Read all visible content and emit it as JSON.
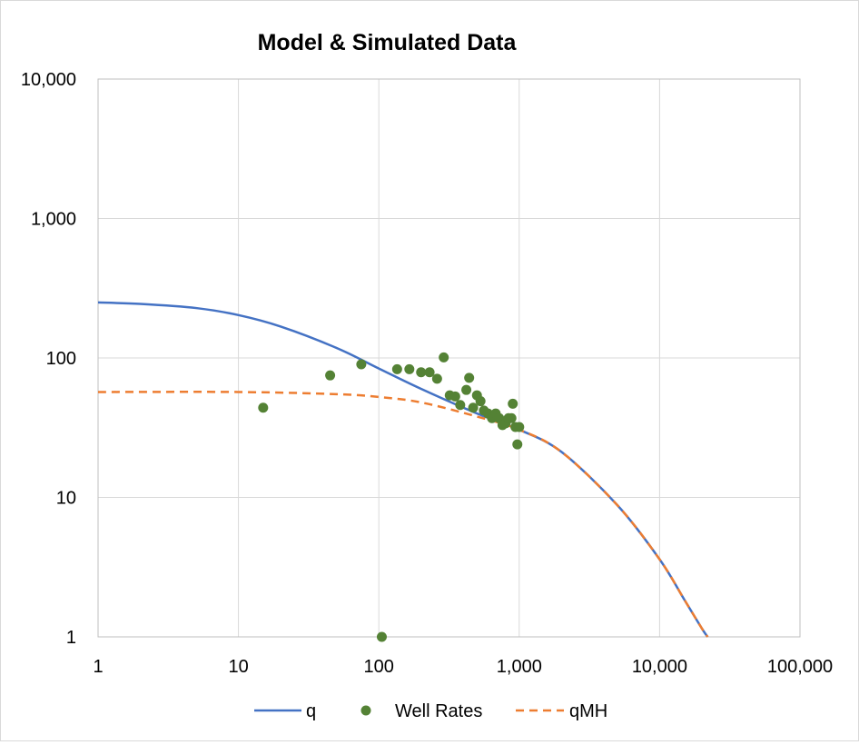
{
  "chart_data": {
    "type": "scatter",
    "title": "Model & Simulated Data",
    "xlabel": "",
    "ylabel": "",
    "x_scale": "log",
    "y_scale": "log",
    "xlim": [
      1,
      100000
    ],
    "ylim": [
      1,
      10000
    ],
    "grid": true,
    "legend_position": "bottom",
    "x_ticks": [
      {
        "value": 1,
        "label": "1"
      },
      {
        "value": 10,
        "label": "10"
      },
      {
        "value": 100,
        "label": "100"
      },
      {
        "value": 1000,
        "label": "1,000"
      },
      {
        "value": 10000,
        "label": "10,000"
      },
      {
        "value": 100000,
        "label": "100,000"
      }
    ],
    "y_ticks": [
      {
        "value": 1,
        "label": "1"
      },
      {
        "value": 10,
        "label": "10"
      },
      {
        "value": 100,
        "label": "100"
      },
      {
        "value": 1000,
        "label": "1,000"
      },
      {
        "value": 10000,
        "label": "10,000"
      }
    ],
    "series": [
      {
        "name": "q",
        "kind": "line",
        "style": "solid",
        "color": "#4472c4",
        "x": [
          1,
          2,
          5,
          10,
          20,
          50,
          100,
          200,
          500,
          1000,
          2000,
          5000,
          10000,
          15000,
          20000,
          22000
        ],
        "y": [
          250,
          244,
          228,
          203,
          168,
          118,
          84,
          60,
          40,
          30.6,
          21.2,
          8.8,
          3.6,
          1.85,
          1.15,
          1.0
        ]
      },
      {
        "name": "Well Rates",
        "kind": "scatter",
        "color": "#548235",
        "x": [
          15,
          45,
          75,
          105,
          135,
          165,
          200,
          230,
          260,
          290,
          320,
          350,
          380,
          420,
          440,
          470,
          500,
          530,
          560,
          600,
          640,
          680,
          720,
          760,
          800,
          840,
          880,
          900,
          940,
          970,
          1000
        ],
        "y": [
          44,
          75,
          90,
          1,
          83,
          83,
          79,
          79,
          71,
          101,
          54,
          53,
          46,
          59,
          72,
          44,
          54,
          49,
          42,
          40,
          37,
          40,
          37,
          33,
          34,
          37,
          37,
          47,
          32,
          24,
          32
        ]
      },
      {
        "name": "qMH",
        "kind": "line",
        "style": "dashed",
        "color": "#ed7d31",
        "x": [
          1,
          10,
          50,
          100,
          200,
          500,
          1000,
          2000,
          5000,
          10000,
          15000,
          20000,
          22000
        ],
        "y": [
          57,
          57,
          55,
          52.5,
          48,
          38,
          30.6,
          21.2,
          8.8,
          3.6,
          1.85,
          1.15,
          1.0
        ]
      }
    ]
  }
}
